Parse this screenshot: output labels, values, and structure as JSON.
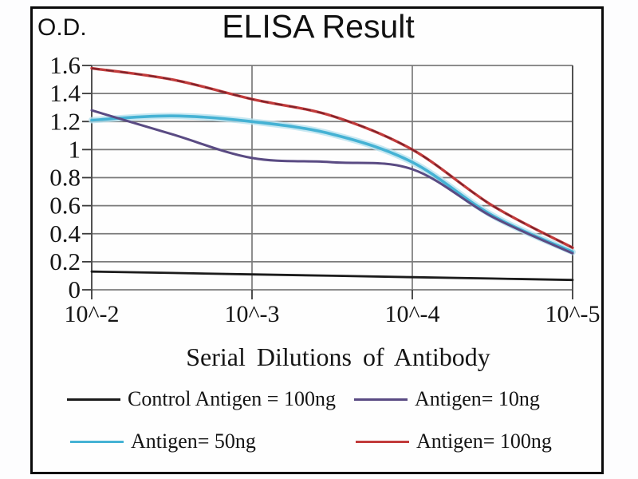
{
  "title": "ELISA Result",
  "od_label": "O.D.",
  "x_axis_title": "Serial Dilutions of Antibody",
  "chart_data": {
    "type": "line",
    "title": "ELISA Result",
    "xlabel": "Serial Dilutions of Antibody",
    "ylabel": "O.D.",
    "x_tick_labels": [
      "10^-2",
      "10^-3",
      "10^-4",
      "10^-5"
    ],
    "y_tick_labels": [
      "1.6",
      "1.4",
      "1.2",
      "1",
      "0.8",
      "0.6",
      "0.4",
      "0.2",
      "0"
    ],
    "ylim": [
      0,
      1.6
    ],
    "grid": true,
    "legend_position": "bottom",
    "x_decades": [
      -2,
      -2.5,
      -3,
      -3.5,
      -4,
      -4.5,
      -5
    ],
    "series": [
      {
        "name": "Control Antigen = 100ng",
        "color": "#1b1b1b",
        "values": [
          0.13,
          0.12,
          0.11,
          0.1,
          0.09,
          0.08,
          0.07
        ]
      },
      {
        "name": "Antigen= 10ng",
        "color": "#5a4b83",
        "values": [
          1.28,
          1.11,
          0.94,
          0.91,
          0.86,
          0.52,
          0.26
        ]
      },
      {
        "name": "Antigen= 50ng",
        "color": "#45b2d4",
        "values": [
          1.21,
          1.24,
          1.2,
          1.11,
          0.91,
          0.53,
          0.27
        ]
      },
      {
        "name": "Antigen= 100ng",
        "color": "#c23b3b",
        "values": [
          1.58,
          1.5,
          1.36,
          1.24,
          1.0,
          0.6,
          0.3
        ]
      }
    ],
    "grid_color": "#7b7b7b"
  },
  "legend": {
    "items": [
      {
        "label": "Control Antigen = 100ng",
        "color": "#1b1b1b"
      },
      {
        "label": "Antigen= 10ng",
        "color": "#5a4b83"
      },
      {
        "label": "Antigen= 50ng",
        "color": "#45b2d4"
      },
      {
        "label": "Antigen= 100ng",
        "color": "#c23b3b"
      }
    ]
  }
}
